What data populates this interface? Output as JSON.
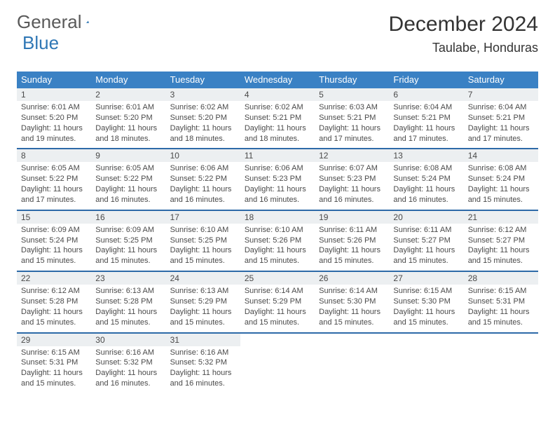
{
  "brand": {
    "word1": "General",
    "word2": "Blue",
    "word1_color": "#5a5a5a",
    "word2_color": "#2f77b5"
  },
  "title": "December 2024",
  "location": "Taulabe, Honduras",
  "colors": {
    "header_bg": "#3a81c4",
    "header_text": "#ffffff",
    "daynum_bg": "#eceff1",
    "row_border": "#2d6aa8",
    "text": "#4a4a4a"
  },
  "dayHeaders": [
    "Sunday",
    "Monday",
    "Tuesday",
    "Wednesday",
    "Thursday",
    "Friday",
    "Saturday"
  ],
  "weeks": [
    [
      {
        "n": "1",
        "sr": "6:01 AM",
        "ss": "5:20 PM",
        "dl": "11 hours and 19 minutes."
      },
      {
        "n": "2",
        "sr": "6:01 AM",
        "ss": "5:20 PM",
        "dl": "11 hours and 18 minutes."
      },
      {
        "n": "3",
        "sr": "6:02 AM",
        "ss": "5:20 PM",
        "dl": "11 hours and 18 minutes."
      },
      {
        "n": "4",
        "sr": "6:02 AM",
        "ss": "5:21 PM",
        "dl": "11 hours and 18 minutes."
      },
      {
        "n": "5",
        "sr": "6:03 AM",
        "ss": "5:21 PM",
        "dl": "11 hours and 17 minutes."
      },
      {
        "n": "6",
        "sr": "6:04 AM",
        "ss": "5:21 PM",
        "dl": "11 hours and 17 minutes."
      },
      {
        "n": "7",
        "sr": "6:04 AM",
        "ss": "5:21 PM",
        "dl": "11 hours and 17 minutes."
      }
    ],
    [
      {
        "n": "8",
        "sr": "6:05 AM",
        "ss": "5:22 PM",
        "dl": "11 hours and 17 minutes."
      },
      {
        "n": "9",
        "sr": "6:05 AM",
        "ss": "5:22 PM",
        "dl": "11 hours and 16 minutes."
      },
      {
        "n": "10",
        "sr": "6:06 AM",
        "ss": "5:22 PM",
        "dl": "11 hours and 16 minutes."
      },
      {
        "n": "11",
        "sr": "6:06 AM",
        "ss": "5:23 PM",
        "dl": "11 hours and 16 minutes."
      },
      {
        "n": "12",
        "sr": "6:07 AM",
        "ss": "5:23 PM",
        "dl": "11 hours and 16 minutes."
      },
      {
        "n": "13",
        "sr": "6:08 AM",
        "ss": "5:24 PM",
        "dl": "11 hours and 16 minutes."
      },
      {
        "n": "14",
        "sr": "6:08 AM",
        "ss": "5:24 PM",
        "dl": "11 hours and 15 minutes."
      }
    ],
    [
      {
        "n": "15",
        "sr": "6:09 AM",
        "ss": "5:24 PM",
        "dl": "11 hours and 15 minutes."
      },
      {
        "n": "16",
        "sr": "6:09 AM",
        "ss": "5:25 PM",
        "dl": "11 hours and 15 minutes."
      },
      {
        "n": "17",
        "sr": "6:10 AM",
        "ss": "5:25 PM",
        "dl": "11 hours and 15 minutes."
      },
      {
        "n": "18",
        "sr": "6:10 AM",
        "ss": "5:26 PM",
        "dl": "11 hours and 15 minutes."
      },
      {
        "n": "19",
        "sr": "6:11 AM",
        "ss": "5:26 PM",
        "dl": "11 hours and 15 minutes."
      },
      {
        "n": "20",
        "sr": "6:11 AM",
        "ss": "5:27 PM",
        "dl": "11 hours and 15 minutes."
      },
      {
        "n": "21",
        "sr": "6:12 AM",
        "ss": "5:27 PM",
        "dl": "11 hours and 15 minutes."
      }
    ],
    [
      {
        "n": "22",
        "sr": "6:12 AM",
        "ss": "5:28 PM",
        "dl": "11 hours and 15 minutes."
      },
      {
        "n": "23",
        "sr": "6:13 AM",
        "ss": "5:28 PM",
        "dl": "11 hours and 15 minutes."
      },
      {
        "n": "24",
        "sr": "6:13 AM",
        "ss": "5:29 PM",
        "dl": "11 hours and 15 minutes."
      },
      {
        "n": "25",
        "sr": "6:14 AM",
        "ss": "5:29 PM",
        "dl": "11 hours and 15 minutes."
      },
      {
        "n": "26",
        "sr": "6:14 AM",
        "ss": "5:30 PM",
        "dl": "11 hours and 15 minutes."
      },
      {
        "n": "27",
        "sr": "6:15 AM",
        "ss": "5:30 PM",
        "dl": "11 hours and 15 minutes."
      },
      {
        "n": "28",
        "sr": "6:15 AM",
        "ss": "5:31 PM",
        "dl": "11 hours and 15 minutes."
      }
    ],
    [
      {
        "n": "29",
        "sr": "6:15 AM",
        "ss": "5:31 PM",
        "dl": "11 hours and 15 minutes."
      },
      {
        "n": "30",
        "sr": "6:16 AM",
        "ss": "5:32 PM",
        "dl": "11 hours and 16 minutes."
      },
      {
        "n": "31",
        "sr": "6:16 AM",
        "ss": "5:32 PM",
        "dl": "11 hours and 16 minutes."
      },
      null,
      null,
      null,
      null
    ]
  ],
  "labels": {
    "sunrise": "Sunrise:",
    "sunset": "Sunset:",
    "daylight": "Daylight:"
  }
}
